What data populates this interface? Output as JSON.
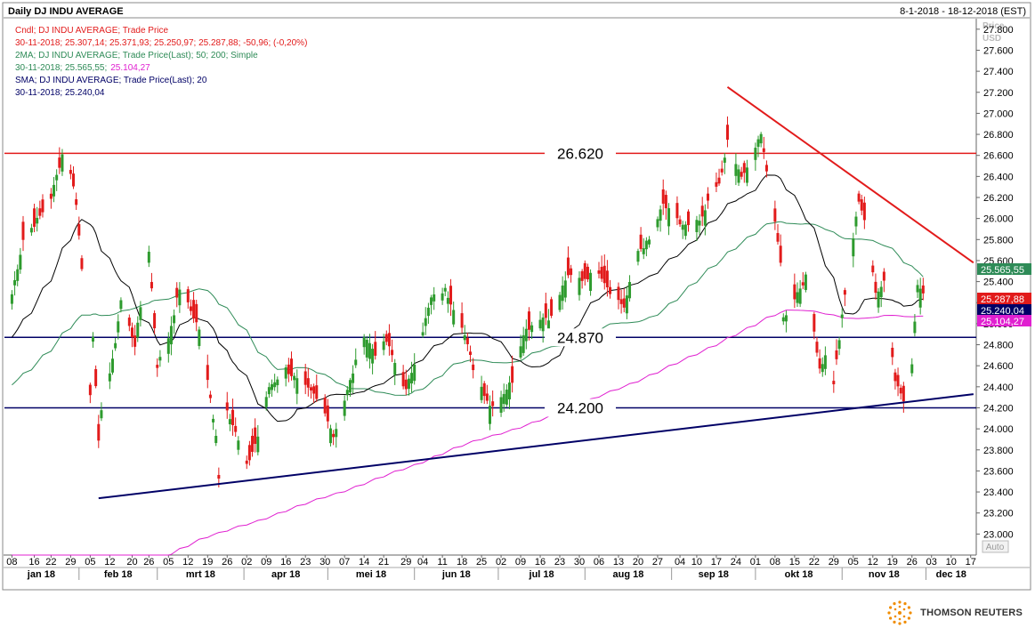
{
  "header": {
    "title": "Daily DJ INDU AVERAGE",
    "date_range": "8-1-2018 - 18-12-2018 (EST)"
  },
  "legend": {
    "line1": "Cndl; DJ INDU AVERAGE; Trade Price",
    "line2": "30-11-2018; 25.307,14; 25.371,93; 25.250,97; 25.287,88; -50,96; (-0,20%)",
    "line3": "2MA; DJ INDU AVERAGE; Trade Price(Last); 50; 200; Simple",
    "line4_a": "30-11-2018; 25.565,55;",
    "line4_b": "25.104,27",
    "line5": "SMA; DJ INDU AVERAGE; Trade Price(Last); 20",
    "line6": "30-11-2018; 25.240,04"
  },
  "axis": {
    "price_label_1": "Price",
    "price_label_2": "USD",
    "auto_label": "Auto"
  },
  "footer": {
    "brand": "THOMSON REUTERS"
  },
  "colors": {
    "up": "#2e9b2e",
    "down": "#e21b1b",
    "ma50": "#2e8b57",
    "ma200": "#e020d0",
    "sma20": "#000000",
    "resistance": "#e21b1b",
    "support": "#000066"
  },
  "chart_data": {
    "type": "candlestick",
    "ylim": [
      22800,
      27900
    ],
    "y_ticks": [
      23000,
      23200,
      23400,
      23600,
      23800,
      24000,
      24200,
      24400,
      24600,
      24800,
      25000,
      25200,
      25400,
      25600,
      25800,
      26000,
      26200,
      26400,
      26600,
      26800,
      27000,
      27200,
      27400,
      27600,
      27800
    ],
    "y_tick_labels": [
      "23.000",
      "23.200",
      "23.400",
      "23.600",
      "23.800",
      "24.000",
      "24.200",
      "24.400",
      "24.600",
      "24.800",
      "25.000",
      "25.200",
      "25.400",
      "25.600",
      "25.800",
      "26.000",
      "26.200",
      "26.400",
      "26.600",
      "26.800",
      "27.000",
      "27.200",
      "27.400",
      "27.600",
      "27.800"
    ],
    "x_day_ticks": [
      "08",
      "16",
      "22",
      "29",
      "05",
      "12",
      "20",
      "26",
      "05",
      "12",
      "19",
      "26",
      "02",
      "09",
      "16",
      "23",
      "30",
      "07",
      "14",
      "21",
      "29",
      "04",
      "11",
      "18",
      "25",
      "02",
      "09",
      "16",
      "23",
      "30",
      "06",
      "13",
      "20",
      "27",
      "04",
      "10",
      "17",
      "24",
      "01",
      "08",
      "15",
      "22",
      "29",
      "05",
      "12",
      "19",
      "26",
      "03",
      "10",
      "17"
    ],
    "x_month_labels": [
      "jan 18",
      "feb 18",
      "mrt 18",
      "apr 18",
      "mei 18",
      "jun 18",
      "jul 18",
      "aug 18",
      "sep 18",
      "okt 18",
      "nov 18",
      "dec 18"
    ],
    "horizontal_levels": [
      {
        "label": "26.620",
        "value": 26620,
        "color": "#e21b1b"
      },
      {
        "label": "24.870",
        "value": 24870,
        "color": "#000066"
      },
      {
        "label": "24.200",
        "value": 24200,
        "color": "#000066"
      }
    ],
    "trendlines": [
      {
        "name": "resistance",
        "color": "#e21b1b",
        "points": [
          {
            "x": "2018-09-21",
            "y": 27250
          },
          {
            "x": "2018-12-18",
            "y": 25580
          }
        ]
      },
      {
        "name": "support",
        "color": "#000066",
        "points": [
          {
            "x": "2018-02-08",
            "y": 23340
          },
          {
            "x": "2018-12-18",
            "y": 24330
          }
        ]
      }
    ],
    "last_values": [
      {
        "name": "2MA 50",
        "label": "25.565,55",
        "value": 25565.55,
        "color": "#2e8b57"
      },
      {
        "name": "Close",
        "label": "25.287,88",
        "value": 25287.88,
        "color": "#e21b1b"
      },
      {
        "name": "SMA 20",
        "label": "25.240,04",
        "value": 25240.04,
        "color": "#000066"
      },
      {
        "name": "2MA 200",
        "label": "25.104,27",
        "value": 25104.27,
        "color": "#e020d0"
      }
    ],
    "close_anchors": [
      [
        "2018-01-08",
        25280
      ],
      [
        "2018-01-12",
        25800
      ],
      [
        "2018-01-18",
        26020
      ],
      [
        "2018-01-22",
        26200
      ],
      [
        "2018-01-26",
        26610
      ],
      [
        "2018-01-29",
        26440
      ],
      [
        "2018-01-31",
        26150
      ],
      [
        "2018-02-02",
        25520
      ],
      [
        "2018-02-05",
        24340
      ],
      [
        "2018-02-06",
        24900
      ],
      [
        "2018-02-08",
        23860
      ],
      [
        "2018-02-09",
        24200
      ],
      [
        "2018-02-13",
        24640
      ],
      [
        "2018-02-16",
        25220
      ],
      [
        "2018-02-21",
        24800
      ],
      [
        "2018-02-26",
        25700
      ],
      [
        "2018-03-01",
        24600
      ],
      [
        "2018-03-05",
        24870
      ],
      [
        "2018-03-09",
        25340
      ],
      [
        "2018-03-12",
        25180
      ],
      [
        "2018-03-16",
        24950
      ],
      [
        "2018-03-22",
        23950
      ],
      [
        "2018-03-23",
        23530
      ],
      [
        "2018-03-26",
        24200
      ],
      [
        "2018-04-02",
        23640
      ],
      [
        "2018-04-06",
        23930
      ],
      [
        "2018-04-10",
        24400
      ],
      [
        "2018-04-16",
        24570
      ],
      [
        "2018-04-20",
        24460
      ],
      [
        "2018-04-26",
        24320
      ],
      [
        "2018-05-01",
        24100
      ],
      [
        "2018-05-03",
        23930
      ],
      [
        "2018-05-08",
        24360
      ],
      [
        "2018-05-14",
        24900
      ],
      [
        "2018-05-18",
        24720
      ],
      [
        "2018-05-22",
        24830
      ],
      [
        "2018-05-29",
        24360
      ],
      [
        "2018-06-01",
        24640
      ],
      [
        "2018-06-07",
        25240
      ],
      [
        "2018-06-12",
        25320
      ],
      [
        "2018-06-18",
        24990
      ],
      [
        "2018-06-22",
        24580
      ],
      [
        "2018-06-28",
        24220
      ],
      [
        "2018-07-02",
        24310
      ],
      [
        "2018-07-06",
        24460
      ],
      [
        "2018-07-10",
        24920
      ],
      [
        "2018-07-16",
        25060
      ],
      [
        "2018-07-20",
        25060
      ],
      [
        "2018-07-25",
        25420
      ],
      [
        "2018-07-27",
        25450
      ],
      [
        "2018-07-31",
        25420
      ],
      [
        "2018-08-06",
        25500
      ],
      [
        "2018-08-10",
        25310
      ],
      [
        "2018-08-15",
        25160
      ],
      [
        "2018-08-20",
        25690
      ],
      [
        "2018-08-24",
        25790
      ],
      [
        "2018-08-29",
        26130
      ],
      [
        "2018-09-04",
        25950
      ],
      [
        "2018-09-07",
        25920
      ],
      [
        "2018-09-12",
        25990
      ],
      [
        "2018-09-14",
        26150
      ],
      [
        "2018-09-19",
        26410
      ],
      [
        "2018-09-21",
        26740
      ],
      [
        "2018-09-26",
        26380
      ],
      [
        "2018-10-01",
        26650
      ],
      [
        "2018-10-03",
        26830
      ],
      [
        "2018-10-05",
        26450
      ],
      [
        "2018-10-10",
        25600
      ],
      [
        "2018-10-11",
        25050
      ],
      [
        "2018-10-15",
        25250
      ],
      [
        "2018-10-19",
        25440
      ],
      [
        "2018-10-24",
        24580
      ],
      [
        "2018-10-26",
        24690
      ],
      [
        "2018-10-29",
        24440
      ],
      [
        "2018-11-02",
        25270
      ],
      [
        "2018-11-07",
        26180
      ],
      [
        "2018-11-09",
        25990
      ],
      [
        "2018-11-13",
        25290
      ],
      [
        "2018-11-16",
        25410
      ],
      [
        "2018-11-20",
        24460
      ],
      [
        "2018-11-23",
        24290
      ],
      [
        "2018-11-26",
        24640
      ],
      [
        "2018-11-28",
        25370
      ],
      [
        "2018-11-30",
        25288
      ]
    ]
  }
}
